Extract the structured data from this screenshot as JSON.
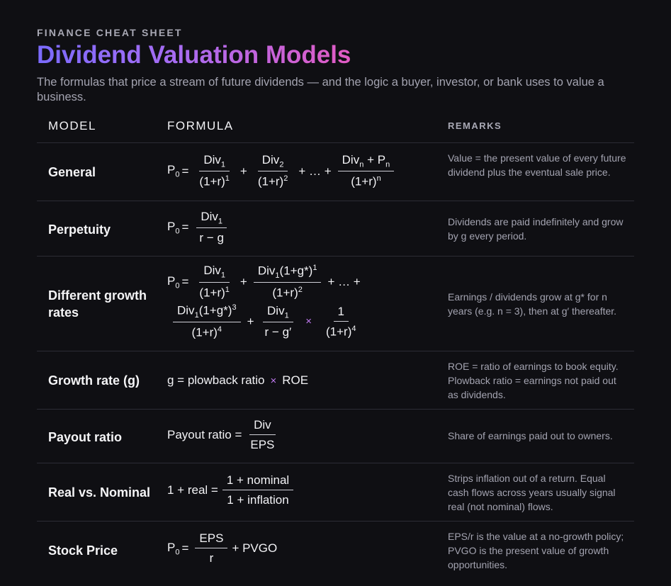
{
  "header": {
    "eyebrow": "FINANCE CHEAT SHEET",
    "title": "Dividend Valuation Models",
    "subtitle": "The formulas that price a stream of future dividends — and the logic a buyer, investor, or bank uses to value a business."
  },
  "columns": {
    "model": "MODEL",
    "formula": "FORMULA",
    "remarks": "REMARKS"
  },
  "rows": [
    {
      "model": "General",
      "remark": "Value = the present value of every future dividend plus the eventual sale price."
    },
    {
      "model": "Perpetuity",
      "remark": "Dividends are paid indefinitely and grow by g every period."
    },
    {
      "model": "Different growth rates",
      "remark": "Earnings / dividends grow at g* for n years (e.g. n = 3), then at g′ thereafter."
    },
    {
      "model": "Growth rate (g)",
      "remark": "ROE = ratio of earnings to book equity. Plowback ratio = earnings not paid out as dividends."
    },
    {
      "model": "Payout ratio",
      "remark": "Share of earnings paid out to owners."
    },
    {
      "model": "Real vs. Nominal",
      "remark": "Strips inflation out of a return. Equal cash flows across years usually signal real (not nominal) flows."
    },
    {
      "model": "Stock Price",
      "remark": "EPS/r is the value at a no-growth policy; PVGO is the present value of growth opportunities."
    }
  ],
  "formulas": {
    "p0": "P",
    "p0_sub": "0",
    "eq": "=",
    "plus": "+",
    "ellipsis": "+ … +",
    "times": "×",
    "div": "Div",
    "sub1": "1",
    "sub2": "2",
    "subn": "n",
    "pn": "P",
    "one_plus_r": "(1+r)",
    "sup1": "1",
    "sup2": "2",
    "sup4": "4",
    "supn": "n",
    "growth_paren": "(1+g*)",
    "sup3": "3",
    "r_minus_g": "r − g",
    "r_minus_gprime": "r − g′",
    "one": "1",
    "g_eq": "g = plowback ratio",
    "roe": "ROE",
    "payout_lhs": "Payout ratio =",
    "div_plain": "Div",
    "eps": "EPS",
    "real_lhs": "1 + real =",
    "nominal": "1 + nominal",
    "inflation": "1 + inflation",
    "r": "r",
    "pvgo": "+ PVGO"
  }
}
